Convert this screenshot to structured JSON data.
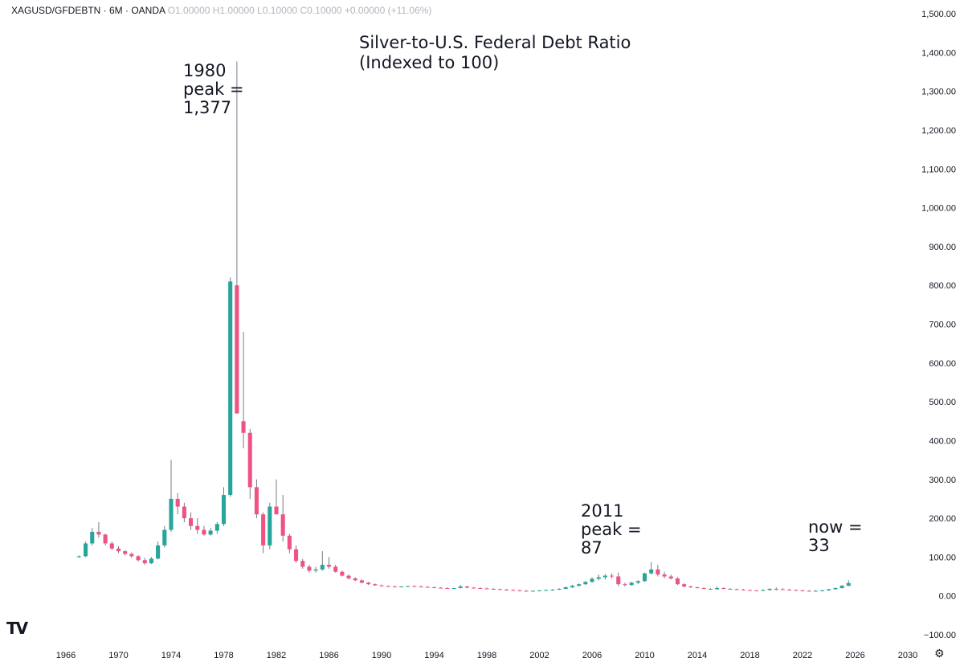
{
  "header": {
    "ticker": "XAGUSD/GFDEBTN · 6M · OANDA",
    "ohlc": "O1.00000 H1.00000 L0.10000 C0.10000 +0.00000 (+11.06%)"
  },
  "logo": "TV",
  "settings_icon": "gear-icon",
  "annotations": {
    "title": "Silver-to-U.S. Federal Debt Ratio\n(Indexed to 100)",
    "peak_1980": "1980\npeak =\n1,377",
    "peak_2011": "2011\npeak =\n87",
    "now": "now =\n33"
  },
  "chart_data": {
    "type": "candlestick",
    "colors": {
      "up": "#26a69a",
      "down": "#ef5383",
      "wick": "#787b86",
      "text": "#131722"
    },
    "ylim": [
      -100,
      1500
    ],
    "y_ticks": [
      -100,
      0,
      100,
      200,
      300,
      400,
      500,
      600,
      700,
      800,
      900,
      1000,
      1100,
      1200,
      1300,
      1400,
      1500
    ],
    "y_tick_labels": [
      "−100.00",
      "0.00",
      "100.00",
      "200.00",
      "300.00",
      "400.00",
      "500.00",
      "600.00",
      "700.00",
      "800.00",
      "900.00",
      "1,000.00",
      "1,100.00",
      "1,200.00",
      "1,300.00",
      "1,400.00",
      "1,500.00"
    ],
    "xlim": [
      1966,
      2030
    ],
    "x_ticks": [
      1966,
      1970,
      1974,
      1978,
      1982,
      1986,
      1990,
      1994,
      1998,
      2002,
      2006,
      2010,
      2014,
      2018,
      2022,
      2026,
      2030
    ],
    "grid": false,
    "candles": [
      {
        "t": 1967.0,
        "o": 100,
        "h": 104,
        "l": 98,
        "c": 102
      },
      {
        "t": 1967.5,
        "o": 102,
        "h": 140,
        "l": 100,
        "c": 135
      },
      {
        "t": 1968.0,
        "o": 135,
        "h": 175,
        "l": 130,
        "c": 165
      },
      {
        "t": 1968.5,
        "o": 165,
        "h": 190,
        "l": 150,
        "c": 158
      },
      {
        "t": 1969.0,
        "o": 158,
        "h": 160,
        "l": 130,
        "c": 135
      },
      {
        "t": 1969.5,
        "o": 135,
        "h": 140,
        "l": 118,
        "c": 122
      },
      {
        "t": 1970.0,
        "o": 122,
        "h": 128,
        "l": 110,
        "c": 115
      },
      {
        "t": 1970.5,
        "o": 115,
        "h": 118,
        "l": 104,
        "c": 108
      },
      {
        "t": 1971.0,
        "o": 108,
        "h": 112,
        "l": 98,
        "c": 102
      },
      {
        "t": 1971.5,
        "o": 102,
        "h": 105,
        "l": 88,
        "c": 92
      },
      {
        "t": 1972.0,
        "o": 92,
        "h": 98,
        "l": 80,
        "c": 84
      },
      {
        "t": 1972.5,
        "o": 84,
        "h": 100,
        "l": 82,
        "c": 96
      },
      {
        "t": 1973.0,
        "o": 96,
        "h": 140,
        "l": 94,
        "c": 130
      },
      {
        "t": 1973.5,
        "o": 130,
        "h": 180,
        "l": 125,
        "c": 170
      },
      {
        "t": 1974.0,
        "o": 170,
        "h": 350,
        "l": 165,
        "c": 250
      },
      {
        "t": 1974.5,
        "o": 250,
        "h": 265,
        "l": 210,
        "c": 230
      },
      {
        "t": 1975.0,
        "o": 230,
        "h": 240,
        "l": 190,
        "c": 200
      },
      {
        "t": 1975.5,
        "o": 200,
        "h": 215,
        "l": 170,
        "c": 180
      },
      {
        "t": 1976.0,
        "o": 180,
        "h": 200,
        "l": 160,
        "c": 170
      },
      {
        "t": 1976.5,
        "o": 170,
        "h": 180,
        "l": 155,
        "c": 158
      },
      {
        "t": 1977.0,
        "o": 158,
        "h": 175,
        "l": 155,
        "c": 168
      },
      {
        "t": 1977.5,
        "o": 168,
        "h": 190,
        "l": 160,
        "c": 185
      },
      {
        "t": 1978.0,
        "o": 185,
        "h": 280,
        "l": 180,
        "c": 260
      },
      {
        "t": 1978.5,
        "o": 260,
        "h": 820,
        "l": 255,
        "c": 810
      },
      {
        "t": 1979.0,
        "o": 800,
        "h": 1377,
        "l": 470,
        "c": 470
      },
      {
        "t": 1979.5,
        "o": 450,
        "h": 680,
        "l": 380,
        "c": 420
      },
      {
        "t": 1980.0,
        "o": 420,
        "h": 430,
        "l": 250,
        "c": 280
      },
      {
        "t": 1980.5,
        "o": 280,
        "h": 300,
        "l": 200,
        "c": 210
      },
      {
        "t": 1981.0,
        "o": 210,
        "h": 215,
        "l": 110,
        "c": 130
      },
      {
        "t": 1981.5,
        "o": 130,
        "h": 240,
        "l": 120,
        "c": 230
      },
      {
        "t": 1982.0,
        "o": 230,
        "h": 300,
        "l": 220,
        "c": 210
      },
      {
        "t": 1982.5,
        "o": 210,
        "h": 260,
        "l": 140,
        "c": 155
      },
      {
        "t": 1983.0,
        "o": 155,
        "h": 160,
        "l": 110,
        "c": 120
      },
      {
        "t": 1983.5,
        "o": 120,
        "h": 130,
        "l": 85,
        "c": 90
      },
      {
        "t": 1984.0,
        "o": 90,
        "h": 95,
        "l": 70,
        "c": 75
      },
      {
        "t": 1984.5,
        "o": 75,
        "h": 80,
        "l": 60,
        "c": 65
      },
      {
        "t": 1985.0,
        "o": 65,
        "h": 75,
        "l": 60,
        "c": 68
      },
      {
        "t": 1985.5,
        "o": 68,
        "h": 115,
        "l": 65,
        "c": 80
      },
      {
        "t": 1986.0,
        "o": 80,
        "h": 100,
        "l": 70,
        "c": 75
      },
      {
        "t": 1986.5,
        "o": 75,
        "h": 80,
        "l": 60,
        "c": 62
      },
      {
        "t": 1987.0,
        "o": 62,
        "h": 65,
        "l": 50,
        "c": 52
      },
      {
        "t": 1987.5,
        "o": 52,
        "h": 55,
        "l": 42,
        "c": 45
      },
      {
        "t": 1988.0,
        "o": 45,
        "h": 48,
        "l": 38,
        "c": 40
      },
      {
        "t": 1988.5,
        "o": 40,
        "h": 42,
        "l": 32,
        "c": 34
      },
      {
        "t": 1989.0,
        "o": 34,
        "h": 36,
        "l": 28,
        "c": 30
      },
      {
        "t": 1989.5,
        "o": 30,
        "h": 32,
        "l": 26,
        "c": 27
      },
      {
        "t": 1990.0,
        "o": 27,
        "h": 29,
        "l": 24,
        "c": 25
      },
      {
        "t": 1990.5,
        "o": 25,
        "h": 27,
        "l": 23,
        "c": 24
      },
      {
        "t": 1991.0,
        "o": 24,
        "h": 26,
        "l": 22,
        "c": 23
      },
      {
        "t": 1991.5,
        "o": 23,
        "h": 25,
        "l": 22,
        "c": 24
      },
      {
        "t": 1992.0,
        "o": 24,
        "h": 26,
        "l": 23,
        "c": 25
      },
      {
        "t": 1992.5,
        "o": 25,
        "h": 27,
        "l": 23,
        "c": 24
      },
      {
        "t": 1993.0,
        "o": 24,
        "h": 26,
        "l": 22,
        "c": 23
      },
      {
        "t": 1993.5,
        "o": 23,
        "h": 25,
        "l": 21,
        "c": 22
      },
      {
        "t": 1994.0,
        "o": 22,
        "h": 24,
        "l": 20,
        "c": 21
      },
      {
        "t": 1994.5,
        "o": 21,
        "h": 23,
        "l": 19,
        "c": 20
      },
      {
        "t": 1995.0,
        "o": 20,
        "h": 22,
        "l": 18,
        "c": 19
      },
      {
        "t": 1995.5,
        "o": 19,
        "h": 21,
        "l": 18,
        "c": 20
      },
      {
        "t": 1996.0,
        "o": 20,
        "h": 28,
        "l": 19,
        "c": 24
      },
      {
        "t": 1996.5,
        "o": 24,
        "h": 26,
        "l": 20,
        "c": 21
      },
      {
        "t": 1997.0,
        "o": 21,
        "h": 23,
        "l": 19,
        "c": 20
      },
      {
        "t": 1997.5,
        "o": 20,
        "h": 22,
        "l": 18,
        "c": 19
      },
      {
        "t": 1998.0,
        "o": 19,
        "h": 21,
        "l": 17,
        "c": 18
      },
      {
        "t": 1998.5,
        "o": 18,
        "h": 20,
        "l": 16,
        "c": 17
      },
      {
        "t": 1999.0,
        "o": 17,
        "h": 19,
        "l": 15,
        "c": 16
      },
      {
        "t": 1999.5,
        "o": 16,
        "h": 18,
        "l": 14,
        "c": 15
      },
      {
        "t": 2000.0,
        "o": 15,
        "h": 17,
        "l": 13,
        "c": 14
      },
      {
        "t": 2000.5,
        "o": 14,
        "h": 16,
        "l": 12,
        "c": 13
      },
      {
        "t": 2001.0,
        "o": 13,
        "h": 15,
        "l": 11,
        "c": 12
      },
      {
        "t": 2001.5,
        "o": 12,
        "h": 14,
        "l": 11,
        "c": 13
      },
      {
        "t": 2002.0,
        "o": 13,
        "h": 15,
        "l": 12,
        "c": 14
      },
      {
        "t": 2002.5,
        "o": 14,
        "h": 16,
        "l": 13,
        "c": 15
      },
      {
        "t": 2003.0,
        "o": 15,
        "h": 18,
        "l": 14,
        "c": 16
      },
      {
        "t": 2003.5,
        "o": 16,
        "h": 20,
        "l": 15,
        "c": 18
      },
      {
        "t": 2004.0,
        "o": 18,
        "h": 24,
        "l": 17,
        "c": 22
      },
      {
        "t": 2004.5,
        "o": 22,
        "h": 28,
        "l": 20,
        "c": 26
      },
      {
        "t": 2005.0,
        "o": 26,
        "h": 32,
        "l": 24,
        "c": 30
      },
      {
        "t": 2005.5,
        "o": 30,
        "h": 38,
        "l": 28,
        "c": 36
      },
      {
        "t": 2006.0,
        "o": 36,
        "h": 48,
        "l": 34,
        "c": 44
      },
      {
        "t": 2006.5,
        "o": 44,
        "h": 55,
        "l": 40,
        "c": 48
      },
      {
        "t": 2007.0,
        "o": 48,
        "h": 56,
        "l": 42,
        "c": 52
      },
      {
        "t": 2007.5,
        "o": 52,
        "h": 58,
        "l": 45,
        "c": 50
      },
      {
        "t": 2008.0,
        "o": 50,
        "h": 60,
        "l": 25,
        "c": 30
      },
      {
        "t": 2008.5,
        "o": 30,
        "h": 34,
        "l": 24,
        "c": 28
      },
      {
        "t": 2009.0,
        "o": 28,
        "h": 36,
        "l": 26,
        "c": 34
      },
      {
        "t": 2009.5,
        "o": 34,
        "h": 40,
        "l": 30,
        "c": 38
      },
      {
        "t": 2010.0,
        "o": 38,
        "h": 60,
        "l": 36,
        "c": 58
      },
      {
        "t": 2010.5,
        "o": 58,
        "h": 87,
        "l": 55,
        "c": 68
      },
      {
        "t": 2011.0,
        "o": 68,
        "h": 80,
        "l": 50,
        "c": 55
      },
      {
        "t": 2011.5,
        "o": 55,
        "h": 62,
        "l": 45,
        "c": 50
      },
      {
        "t": 2012.0,
        "o": 50,
        "h": 55,
        "l": 42,
        "c": 45
      },
      {
        "t": 2012.5,
        "o": 45,
        "h": 48,
        "l": 28,
        "c": 30
      },
      {
        "t": 2013.0,
        "o": 30,
        "h": 32,
        "l": 22,
        "c": 24
      },
      {
        "t": 2013.5,
        "o": 24,
        "h": 26,
        "l": 20,
        "c": 22
      },
      {
        "t": 2014.0,
        "o": 22,
        "h": 24,
        "l": 19,
        "c": 20
      },
      {
        "t": 2014.5,
        "o": 20,
        "h": 22,
        "l": 17,
        "c": 18
      },
      {
        "t": 2015.0,
        "o": 18,
        "h": 20,
        "l": 16,
        "c": 17
      },
      {
        "t": 2015.5,
        "o": 17,
        "h": 24,
        "l": 16,
        "c": 20
      },
      {
        "t": 2016.0,
        "o": 20,
        "h": 22,
        "l": 17,
        "c": 18
      },
      {
        "t": 2016.5,
        "o": 18,
        "h": 20,
        "l": 16,
        "c": 17
      },
      {
        "t": 2017.0,
        "o": 17,
        "h": 19,
        "l": 15,
        "c": 16
      },
      {
        "t": 2017.5,
        "o": 16,
        "h": 18,
        "l": 14,
        "c": 15
      },
      {
        "t": 2018.0,
        "o": 15,
        "h": 16,
        "l": 13,
        "c": 14
      },
      {
        "t": 2018.5,
        "o": 14,
        "h": 15,
        "l": 12,
        "c": 13
      },
      {
        "t": 2019.0,
        "o": 13,
        "h": 17,
        "l": 12,
        "c": 15
      },
      {
        "t": 2019.5,
        "o": 15,
        "h": 20,
        "l": 14,
        "c": 18
      },
      {
        "t": 2020.0,
        "o": 18,
        "h": 22,
        "l": 14,
        "c": 17
      },
      {
        "t": 2020.5,
        "o": 17,
        "h": 20,
        "l": 15,
        "c": 16
      },
      {
        "t": 2021.0,
        "o": 16,
        "h": 18,
        "l": 14,
        "c": 15
      },
      {
        "t": 2021.5,
        "o": 15,
        "h": 17,
        "l": 13,
        "c": 14
      },
      {
        "t": 2022.0,
        "o": 14,
        "h": 16,
        "l": 12,
        "c": 13
      },
      {
        "t": 2022.5,
        "o": 13,
        "h": 15,
        "l": 11,
        "c": 12
      },
      {
        "t": 2023.0,
        "o": 12,
        "h": 15,
        "l": 11,
        "c": 13
      },
      {
        "t": 2023.5,
        "o": 13,
        "h": 16,
        "l": 12,
        "c": 14
      },
      {
        "t": 2024.0,
        "o": 14,
        "h": 18,
        "l": 13,
        "c": 17
      },
      {
        "t": 2024.5,
        "o": 17,
        "h": 22,
        "l": 16,
        "c": 20
      },
      {
        "t": 2025.0,
        "o": 20,
        "h": 28,
        "l": 19,
        "c": 26
      },
      {
        "t": 2025.5,
        "o": 26,
        "h": 40,
        "l": 25,
        "c": 33
      }
    ]
  }
}
